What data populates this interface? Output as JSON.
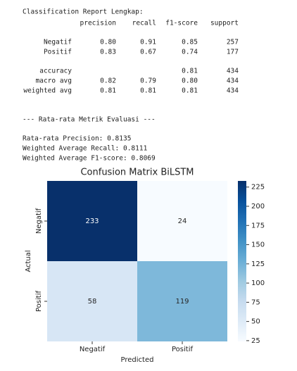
{
  "report": {
    "title": "Classification Report Lengkap:",
    "columns": [
      "precision",
      "recall",
      "f1-score",
      "support"
    ],
    "rows": [
      {
        "label": "Negatif",
        "precision": "0.80",
        "recall": "0.91",
        "f1-score": "0.85",
        "support": "257"
      },
      {
        "label": "Positif",
        "precision": "0.83",
        "recall": "0.67",
        "f1-score": "0.74",
        "support": "177"
      },
      {
        "label": "accuracy",
        "f1-score": "0.81",
        "support": "434"
      },
      {
        "label": "macro avg",
        "precision": "0.82",
        "recall": "0.79",
        "f1-score": "0.80",
        "support": "434"
      },
      {
        "label": "weighted avg",
        "precision": "0.81",
        "recall": "0.81",
        "f1-score": "0.81",
        "support": "434"
      }
    ]
  },
  "summary": {
    "heading": "--- Rata-rata Metrik Evaluasi ---",
    "lines": [
      "Rata-rata Precision: 0.8135",
      "Weighted Average Recall: 0.8111",
      "Weighted Average F1-score: 0.8069"
    ]
  },
  "chart_data": {
    "type": "heatmap",
    "title": "Confusion Matrix BiLSTM",
    "x_label": "Predicted",
    "y_label": "Actual",
    "x_categories": [
      "Negatif",
      "Positif"
    ],
    "y_categories": [
      "Negatif",
      "Positif"
    ],
    "values": [
      [
        233,
        24
      ],
      [
        58,
        119
      ]
    ],
    "colormap": "Blues",
    "zlim": [
      24,
      233
    ],
    "zticks": [
      25,
      50,
      75,
      100,
      125,
      150,
      175,
      200,
      225
    ]
  }
}
